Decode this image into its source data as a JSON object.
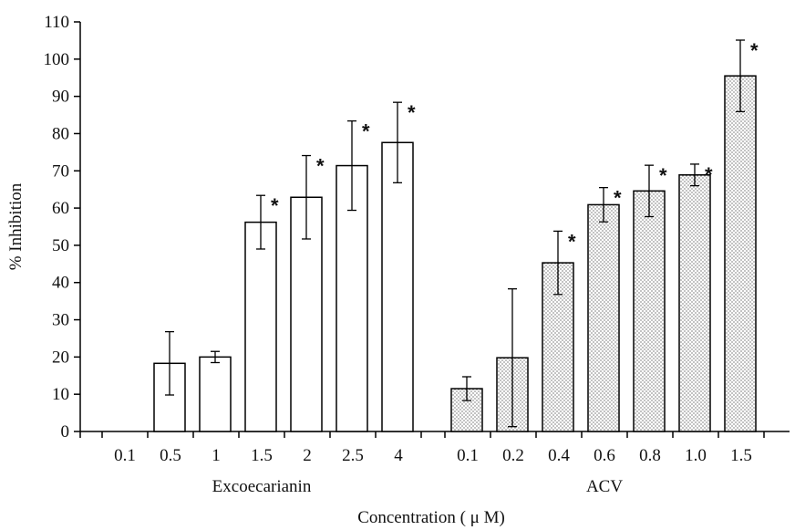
{
  "chart_data": {
    "type": "bar",
    "title": "",
    "ylabel": "% Inhibition",
    "xlabel": "Concentration ( μ M)",
    "ylim": [
      0,
      110
    ],
    "yticks": [
      0,
      10,
      20,
      30,
      40,
      50,
      60,
      70,
      80,
      90,
      100,
      110
    ],
    "grid": false,
    "groups": [
      {
        "name": "Excoecarianin",
        "fill": "white",
        "categories": [
          "0.1",
          "0.5",
          "1",
          "1.5",
          "2",
          "2.5",
          "4"
        ],
        "values": [
          null,
          18.3,
          20.0,
          56.2,
          62.9,
          71.4,
          77.6
        ],
        "errors": [
          null,
          8.5,
          1.5,
          7.2,
          11.2,
          12.0,
          10.8
        ],
        "significant": [
          false,
          false,
          false,
          true,
          true,
          true,
          true
        ]
      },
      {
        "name": "ACV",
        "fill": "dotted",
        "categories": [
          "0.1",
          "0.2",
          "0.4",
          "0.6",
          "0.8",
          "1.0",
          "1.5"
        ],
        "values": [
          11.5,
          19.8,
          45.3,
          60.9,
          64.6,
          68.9,
          95.5
        ],
        "errors": [
          3.2,
          18.5,
          8.5,
          4.6,
          6.9,
          2.9,
          9.6
        ],
        "significant": [
          false,
          false,
          true,
          true,
          true,
          true,
          true
        ]
      }
    ],
    "significance_marker": "*"
  }
}
